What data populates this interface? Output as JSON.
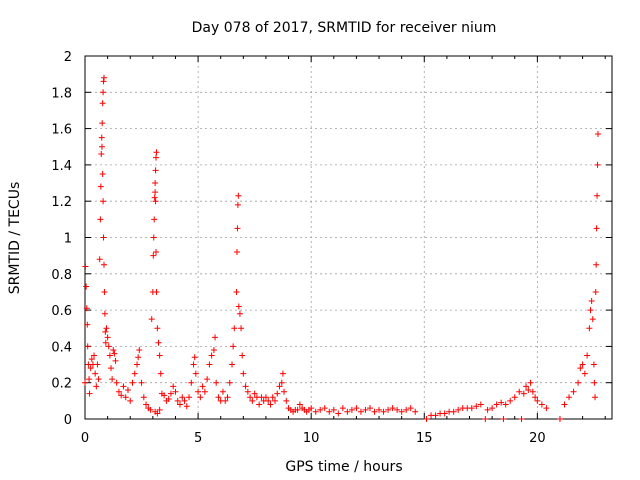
{
  "chart_data": {
    "type": "scatter",
    "title": "Day 078 of 2017, SRMTID for receiver nium",
    "xlabel": "GPS time / hours",
    "ylabel": "SRMTID / TECUs",
    "xlim": [
      0,
      23.3
    ],
    "ylim": [
      0,
      2
    ],
    "x_ticks": [
      0,
      5,
      10,
      15,
      20
    ],
    "y_ticks": [
      0,
      0.2,
      0.4,
      0.6,
      0.8,
      1,
      1.2,
      1.4,
      1.6,
      1.8,
      2
    ],
    "x_tick_labels": [
      "0",
      "5",
      "10",
      "15",
      "20"
    ],
    "y_tick_labels": [
      "0",
      "0.2",
      "0.4",
      "0.6",
      "0.8",
      "1",
      "1.2",
      "1.4",
      "1.6",
      "1.8",
      "2"
    ],
    "grid": true,
    "marker": "plus",
    "colors": {
      "points": "#ff0000",
      "grid": "#a0a0a0",
      "axes": "#000000"
    },
    "series": [
      {
        "values": [
          [
            0.0,
            0.2
          ],
          [
            0.02,
            0.84
          ],
          [
            0.05,
            0.73
          ],
          [
            0.08,
            0.61
          ],
          [
            0.1,
            0.52
          ],
          [
            0.12,
            0.4
          ],
          [
            0.15,
            0.3
          ],
          [
            0.18,
            0.22
          ],
          [
            0.2,
            0.14
          ],
          [
            0.25,
            0.28
          ],
          [
            0.3,
            0.33
          ],
          [
            0.35,
            0.3
          ],
          [
            0.4,
            0.35
          ],
          [
            0.45,
            0.25
          ],
          [
            0.5,
            0.18
          ],
          [
            0.55,
            0.3
          ],
          [
            0.6,
            0.22
          ],
          [
            0.65,
            0.88
          ],
          [
            0.68,
            1.1
          ],
          [
            0.7,
            1.28
          ],
          [
            0.72,
            1.46
          ],
          [
            0.74,
            1.55
          ],
          [
            0.76,
            1.63
          ],
          [
            0.78,
            1.74
          ],
          [
            0.8,
            1.8
          ],
          [
            0.82,
            1.86
          ],
          [
            0.84,
            1.88
          ],
          [
            0.75,
            1.5
          ],
          [
            0.78,
            1.35
          ],
          [
            0.8,
            1.2
          ],
          [
            0.82,
            1.0
          ],
          [
            0.84,
            0.85
          ],
          [
            0.86,
            0.7
          ],
          [
            0.88,
            0.58
          ],
          [
            0.9,
            0.48
          ],
          [
            0.92,
            0.42
          ],
          [
            0.95,
            0.5
          ],
          [
            1.0,
            0.45
          ],
          [
            1.05,
            0.4
          ],
          [
            1.1,
            0.35
          ],
          [
            1.15,
            0.28
          ],
          [
            1.2,
            0.22
          ],
          [
            1.25,
            0.38
          ],
          [
            1.3,
            0.36
          ],
          [
            1.35,
            0.32
          ],
          [
            1.4,
            0.2
          ],
          [
            1.5,
            0.15
          ],
          [
            1.6,
            0.13
          ],
          [
            1.7,
            0.18
          ],
          [
            1.8,
            0.12
          ],
          [
            1.9,
            0.16
          ],
          [
            2.0,
            0.1
          ],
          [
            2.1,
            0.2
          ],
          [
            2.2,
            0.25
          ],
          [
            2.3,
            0.3
          ],
          [
            2.35,
            0.34
          ],
          [
            2.4,
            0.38
          ],
          [
            2.5,
            0.2
          ],
          [
            2.6,
            0.12
          ],
          [
            2.7,
            0.08
          ],
          [
            2.8,
            0.06
          ],
          [
            2.9,
            0.05
          ],
          [
            2.95,
            0.55
          ],
          [
            3.0,
            0.7
          ],
          [
            3.02,
            0.9
          ],
          [
            3.04,
            1.0
          ],
          [
            3.06,
            1.1
          ],
          [
            3.08,
            1.22
          ],
          [
            3.1,
            1.3
          ],
          [
            3.12,
            1.37
          ],
          [
            3.14,
            1.44
          ],
          [
            3.16,
            1.47
          ],
          [
            3.1,
            1.25
          ],
          [
            3.12,
            1.2
          ],
          [
            3.14,
            0.92
          ],
          [
            3.16,
            0.7
          ],
          [
            3.2,
            0.5
          ],
          [
            3.25,
            0.42
          ],
          [
            3.3,
            0.35
          ],
          [
            3.35,
            0.25
          ],
          [
            3.4,
            0.14
          ],
          [
            3.1,
            0.04
          ],
          [
            3.2,
            0.03
          ],
          [
            3.3,
            0.05
          ],
          [
            3.5,
            0.13
          ],
          [
            3.6,
            0.1
          ],
          [
            3.7,
            0.11
          ],
          [
            3.8,
            0.14
          ],
          [
            3.9,
            0.18
          ],
          [
            4.0,
            0.15
          ],
          [
            4.1,
            0.1
          ],
          [
            4.2,
            0.08
          ],
          [
            4.3,
            0.12
          ],
          [
            4.4,
            0.1
          ],
          [
            4.5,
            0.07
          ],
          [
            4.6,
            0.12
          ],
          [
            4.7,
            0.2
          ],
          [
            4.8,
            0.3
          ],
          [
            4.85,
            0.34
          ],
          [
            4.9,
            0.25
          ],
          [
            5.0,
            0.15
          ],
          [
            5.1,
            0.12
          ],
          [
            5.2,
            0.18
          ],
          [
            5.3,
            0.15
          ],
          [
            5.4,
            0.22
          ],
          [
            5.5,
            0.3
          ],
          [
            5.6,
            0.35
          ],
          [
            5.7,
            0.38
          ],
          [
            5.75,
            0.45
          ],
          [
            5.8,
            0.2
          ],
          [
            5.9,
            0.12
          ],
          [
            6.0,
            0.1
          ],
          [
            6.1,
            0.15
          ],
          [
            6.2,
            0.1
          ],
          [
            6.3,
            0.12
          ],
          [
            6.4,
            0.2
          ],
          [
            6.5,
            0.3
          ],
          [
            6.55,
            0.4
          ],
          [
            6.6,
            0.5
          ],
          [
            6.7,
            0.7
          ],
          [
            6.72,
            0.92
          ],
          [
            6.74,
            1.05
          ],
          [
            6.76,
            1.18
          ],
          [
            6.78,
            1.23
          ],
          [
            6.8,
            0.62
          ],
          [
            6.85,
            0.58
          ],
          [
            6.9,
            0.5
          ],
          [
            6.95,
            0.35
          ],
          [
            7.0,
            0.25
          ],
          [
            7.1,
            0.18
          ],
          [
            7.2,
            0.15
          ],
          [
            7.3,
            0.12
          ],
          [
            7.4,
            0.1
          ],
          [
            7.5,
            0.14
          ],
          [
            7.6,
            0.12
          ],
          [
            7.7,
            0.08
          ],
          [
            7.8,
            0.12
          ],
          [
            7.9,
            0.1
          ],
          [
            8.0,
            0.12
          ],
          [
            8.1,
            0.1
          ],
          [
            8.2,
            0.08
          ],
          [
            8.3,
            0.12
          ],
          [
            8.4,
            0.1
          ],
          [
            8.5,
            0.14
          ],
          [
            8.6,
            0.18
          ],
          [
            8.7,
            0.2
          ],
          [
            8.75,
            0.25
          ],
          [
            8.8,
            0.15
          ],
          [
            8.9,
            0.1
          ],
          [
            9.0,
            0.06
          ],
          [
            9.1,
            0.05
          ],
          [
            9.2,
            0.04
          ],
          [
            9.3,
            0.05
          ],
          [
            9.4,
            0.05
          ],
          [
            9.5,
            0.08
          ],
          [
            9.6,
            0.06
          ],
          [
            9.7,
            0.05
          ],
          [
            9.8,
            0.04
          ],
          [
            9.9,
            0.05
          ],
          [
            10.0,
            0.06
          ],
          [
            10.2,
            0.04
          ],
          [
            10.4,
            0.05
          ],
          [
            10.6,
            0.06
          ],
          [
            10.8,
            0.04
          ],
          [
            11.0,
            0.05
          ],
          [
            11.2,
            0.03
          ],
          [
            11.4,
            0.06
          ],
          [
            11.6,
            0.04
          ],
          [
            11.8,
            0.05
          ],
          [
            12.0,
            0.06
          ],
          [
            12.2,
            0.04
          ],
          [
            12.4,
            0.05
          ],
          [
            12.6,
            0.06
          ],
          [
            12.8,
            0.04
          ],
          [
            13.0,
            0.05
          ],
          [
            13.2,
            0.04
          ],
          [
            13.4,
            0.05
          ],
          [
            13.6,
            0.06
          ],
          [
            13.8,
            0.05
          ],
          [
            14.0,
            0.04
          ],
          [
            14.2,
            0.05
          ],
          [
            14.4,
            0.06
          ],
          [
            14.6,
            0.04
          ],
          [
            15.1,
            0.0
          ],
          [
            15.3,
            0.02
          ],
          [
            15.5,
            0.02
          ],
          [
            15.7,
            0.03
          ],
          [
            15.9,
            0.03
          ],
          [
            16.1,
            0.04
          ],
          [
            16.3,
            0.04
          ],
          [
            16.5,
            0.05
          ],
          [
            16.7,
            0.06
          ],
          [
            16.9,
            0.06
          ],
          [
            17.1,
            0.06
          ],
          [
            17.3,
            0.07
          ],
          [
            17.5,
            0.08
          ],
          [
            17.7,
            0.0
          ],
          [
            17.8,
            0.05
          ],
          [
            18.0,
            0.06
          ],
          [
            18.2,
            0.08
          ],
          [
            18.4,
            0.09
          ],
          [
            18.5,
            0.0
          ],
          [
            18.6,
            0.08
          ],
          [
            18.8,
            0.1
          ],
          [
            19.0,
            0.12
          ],
          [
            19.2,
            0.15
          ],
          [
            19.3,
            0.0
          ],
          [
            19.4,
            0.14
          ],
          [
            19.5,
            0.18
          ],
          [
            19.6,
            0.16
          ],
          [
            19.7,
            0.2
          ],
          [
            19.8,
            0.15
          ],
          [
            19.9,
            0.12
          ],
          [
            20.0,
            0.1
          ],
          [
            20.2,
            0.08
          ],
          [
            20.4,
            0.06
          ],
          [
            21.0,
            0.0
          ],
          [
            21.2,
            0.08
          ],
          [
            21.4,
            0.12
          ],
          [
            21.6,
            0.15
          ],
          [
            21.8,
            0.2
          ],
          [
            21.9,
            0.28
          ],
          [
            22.0,
            0.3
          ],
          [
            22.1,
            0.25
          ],
          [
            22.2,
            0.35
          ],
          [
            22.3,
            0.5
          ],
          [
            22.35,
            0.6
          ],
          [
            22.4,
            0.65
          ],
          [
            22.45,
            0.55
          ],
          [
            22.5,
            0.3
          ],
          [
            22.52,
            0.2
          ],
          [
            22.55,
            0.12
          ],
          [
            22.58,
            0.7
          ],
          [
            22.6,
            0.85
          ],
          [
            22.62,
            1.05
          ],
          [
            22.64,
            1.23
          ],
          [
            22.66,
            1.4
          ],
          [
            22.68,
            1.57
          ]
        ]
      }
    ]
  }
}
